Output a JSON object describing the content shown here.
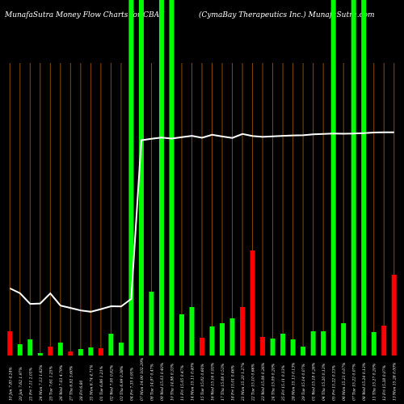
{
  "header": {
    "left": "MunafaSutra  Money Flow  Charts for CBAY",
    "right": "(CymaBay Therapeutics Inc.) MunafaSutra.com"
  },
  "colors": {
    "background": "#000000",
    "grid": "#8a4a00",
    "up": "#00ff00",
    "down": "#ff0000",
    "line": "#ffffff",
    "label": "#ffffff"
  },
  "chart_data": {
    "type": "bar",
    "title": "MunafaSutra  Money Flow  Charts for CBAY",
    "subtitle": "(CymaBay Therapeutics Inc.) MunafaSutra.com",
    "x_labels": [
      "10 Jan 7.85 4.24%",
      "20 Jan 7.62 1.97%",
      "21 Fri 7.11 2.01%",
      "24 Mon 7.13 1.62%",
      "25 Tue 7.61 1.25%",
      "26 Wed 7.03 4.79%",
      "27 Thu 6.92 5.60%",
      "28 Fri 6.80",
      "31 Mon 6.74 4.71%",
      "01 Tue 6.86 1.21%",
      "02 Wed 7.00 0.62%",
      "03 Thu 6.99 0.38%",
      "04 Fri 7.35 0.91%",
      "07 Mon 14.90 102.29%",
      "08 Tue 14.97 0.47%",
      "09 Wed 15.03 0.40%",
      "10 Thu 14.98 0.33%",
      "11 Fri 15.05 0.47%",
      "14 Mon 15.11 0.40%",
      "15 Tue 15.02 0.60%",
      "16 Wed 15.16 0.93%",
      "17 Thu 15.08 0.53%",
      "18 Fri 15.01 0.46%",
      "21 Mon 15.20 1.27%",
      "22 Tue 15.10 0.66%",
      "23 Wed 15.06 0.26%",
      "24 Thu 15.09 0.20%",
      "25 Fri 15.11 0.13%",
      "28 Mon 15.13 0.13%",
      "29 Tue 15.14 0.07%",
      "01 Wed 15.18 0.26%",
      "04 Thu 15.20 0.13%",
      "05 Fri 15.22 0.13%",
      "06 Mon 15.21 0.07%",
      "07 Tue 15.22 0.07%",
      "08 Wed 15.24 0.13%",
      "11 Thu 15.27 0.20%",
      "12 Fri 15.28 0.07%",
      "13 Mon 15.28 0.00%"
    ],
    "bars": [
      {
        "value": 30,
        "color": "red"
      },
      {
        "value": 14,
        "color": "green"
      },
      {
        "value": 20,
        "color": "green"
      },
      {
        "value": 3,
        "color": "green"
      },
      {
        "value": 11,
        "color": "red"
      },
      {
        "value": 16,
        "color": "green"
      },
      {
        "value": 5,
        "color": "red"
      },
      {
        "value": 8,
        "color": "green"
      },
      {
        "value": 10,
        "color": "green"
      },
      {
        "value": 9,
        "color": "red"
      },
      {
        "value": 27,
        "color": "green"
      },
      {
        "value": 16,
        "color": "green"
      },
      {
        "value": 100,
        "color": "green"
      },
      {
        "value": 100,
        "color": "green"
      },
      {
        "value": 79,
        "color": "green"
      },
      {
        "value": 100,
        "color": "green"
      },
      {
        "value": 100,
        "color": "green"
      },
      {
        "value": 51,
        "color": "green"
      },
      {
        "value": 60,
        "color": "green"
      },
      {
        "value": 22,
        "color": "red"
      },
      {
        "value": 36,
        "color": "green"
      },
      {
        "value": 40,
        "color": "green"
      },
      {
        "value": 46,
        "color": "green"
      },
      {
        "value": 60,
        "color": "red"
      },
      {
        "value": 130,
        "color": "red"
      },
      {
        "value": 23,
        "color": "red"
      },
      {
        "value": 21,
        "color": "green"
      },
      {
        "value": 27,
        "color": "green"
      },
      {
        "value": 20,
        "color": "green"
      },
      {
        "value": 11,
        "color": "green"
      },
      {
        "value": 30,
        "color": "green"
      },
      {
        "value": 30,
        "color": "green"
      },
      {
        "value": 100,
        "color": "green"
      },
      {
        "value": 40,
        "color": "green"
      },
      {
        "value": 100,
        "color": "green"
      },
      {
        "value": 100,
        "color": "green"
      },
      {
        "value": 29,
        "color": "green"
      },
      {
        "value": 37,
        "color": "red"
      },
      {
        "value": 100,
        "color": "red"
      }
    ],
    "tall_bars": [
      12,
      13,
      15,
      16,
      32,
      34,
      35
    ],
    "line": [
      7.85,
      7.62,
      7.11,
      7.13,
      7.61,
      7.03,
      6.92,
      6.8,
      6.74,
      6.86,
      7.0,
      6.99,
      7.35,
      14.9,
      14.97,
      15.03,
      14.98,
      15.05,
      15.11,
      15.02,
      15.16,
      15.08,
      15.01,
      15.2,
      15.1,
      15.06,
      15.09,
      15.11,
      15.13,
      15.14,
      15.18,
      15.2,
      15.22,
      15.21,
      15.22,
      15.24,
      15.27,
      15.28,
      15.28
    ],
    "ylim_line": [
      6,
      16
    ],
    "ylim_bars": [
      0,
      130
    ],
    "grid": true,
    "legend": "none"
  }
}
